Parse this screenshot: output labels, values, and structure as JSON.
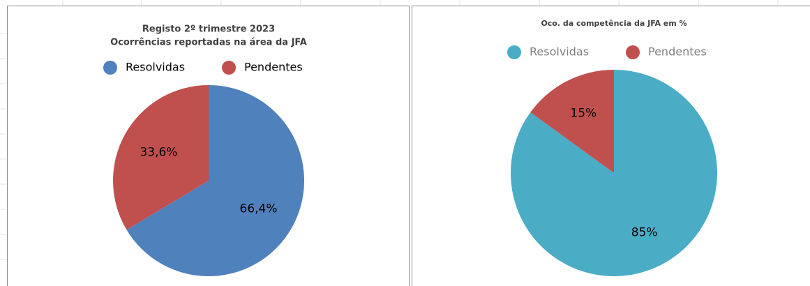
{
  "chart_data": [
    {
      "type": "pie",
      "title": "Registo 2º trimestre 2023",
      "subtitle": "Ocorrências reportadas na área da JFA",
      "categories": [
        "Resolvidas",
        "Pendentes"
      ],
      "values": [
        66.4,
        33.6
      ],
      "value_labels": [
        "66,4%",
        "33,6%"
      ],
      "colors": [
        "#4f81bd",
        "#c0504d"
      ]
    },
    {
      "type": "pie",
      "title": "Oco. da competência da JFA em %",
      "categories": [
        "Resolvidas",
        "Pendentes"
      ],
      "values": [
        85,
        15
      ],
      "value_labels": [
        "85%",
        "15%"
      ],
      "colors": [
        "#4bacc6",
        "#c0504d"
      ]
    }
  ]
}
